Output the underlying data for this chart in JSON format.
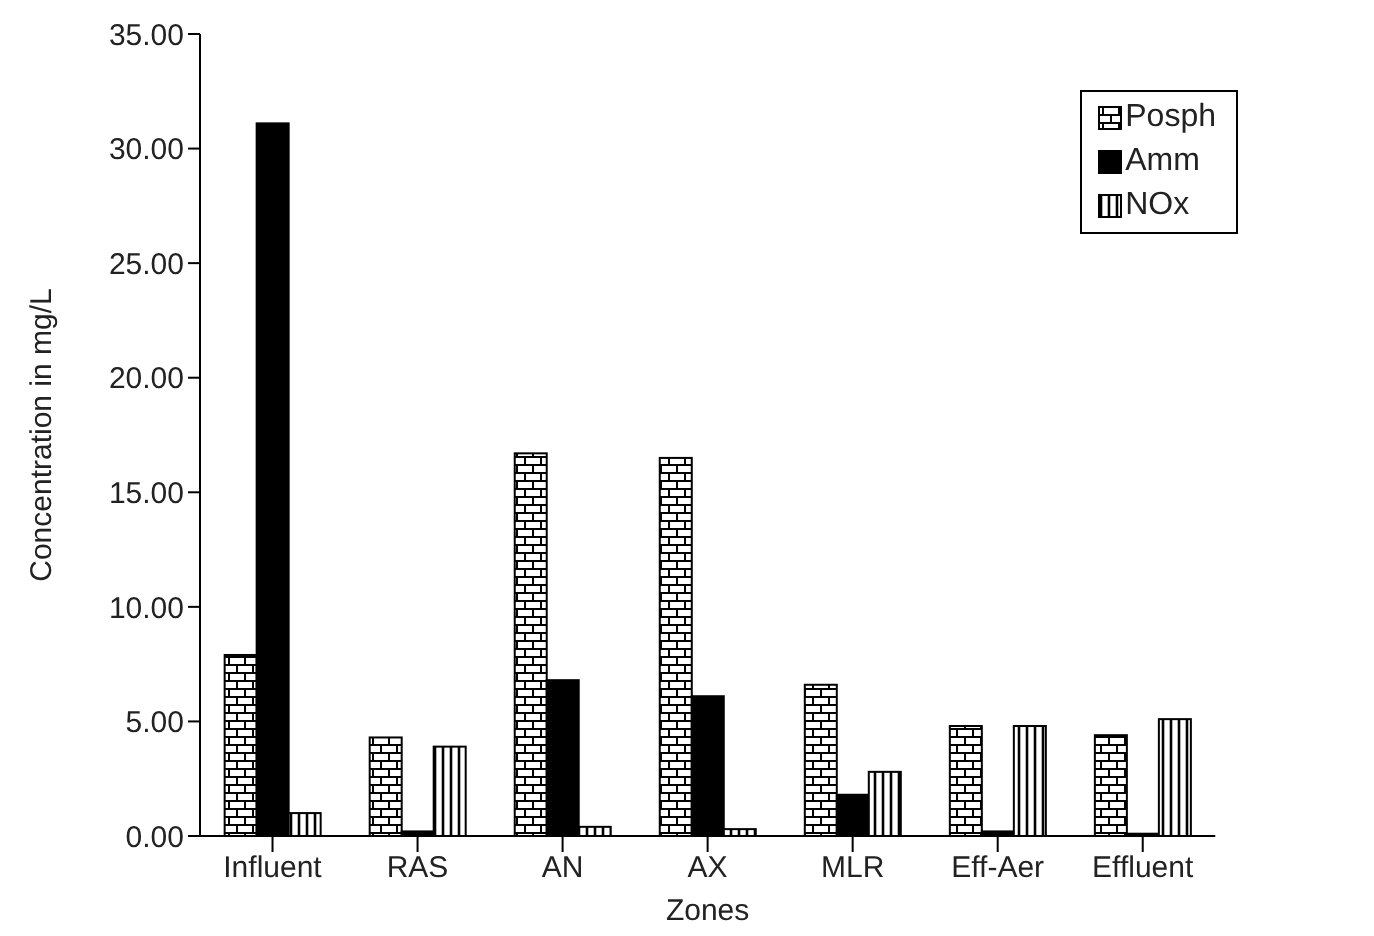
{
  "chart_data": {
    "type": "bar",
    "xlabel": "Zones",
    "ylabel": "Concentration in mg/L",
    "categories": [
      "Influent",
      "RAS",
      "AN",
      "AX",
      "MLR",
      "Eff-Aer",
      "Effluent"
    ],
    "series": [
      {
        "name": "Posph",
        "color": "#ffffff",
        "values": [
          7.9,
          4.3,
          16.7,
          16.5,
          6.6,
          4.8,
          4.4
        ]
      },
      {
        "name": "Amm",
        "color": "#000000",
        "values": [
          31.1,
          0.2,
          6.8,
          6.1,
          1.8,
          0.2,
          0.1
        ]
      },
      {
        "name": "NOx",
        "color": "#ffffff",
        "values": [
          1.0,
          3.9,
          0.4,
          0.3,
          2.8,
          4.8,
          5.1
        ]
      }
    ],
    "ylim": [
      0,
      35
    ],
    "yticks": [
      {
        "value": 0,
        "label": "0.00"
      },
      {
        "value": 5,
        "label": "5.00"
      },
      {
        "value": 10,
        "label": "10.00"
      },
      {
        "value": 15,
        "label": "15.00"
      },
      {
        "value": 20,
        "label": "20.00"
      },
      {
        "value": 25,
        "label": "25.00"
      },
      {
        "value": 30,
        "label": "30.00"
      },
      {
        "value": 35,
        "label": "35.00"
      }
    ],
    "grid": false,
    "legend": "top right"
  }
}
